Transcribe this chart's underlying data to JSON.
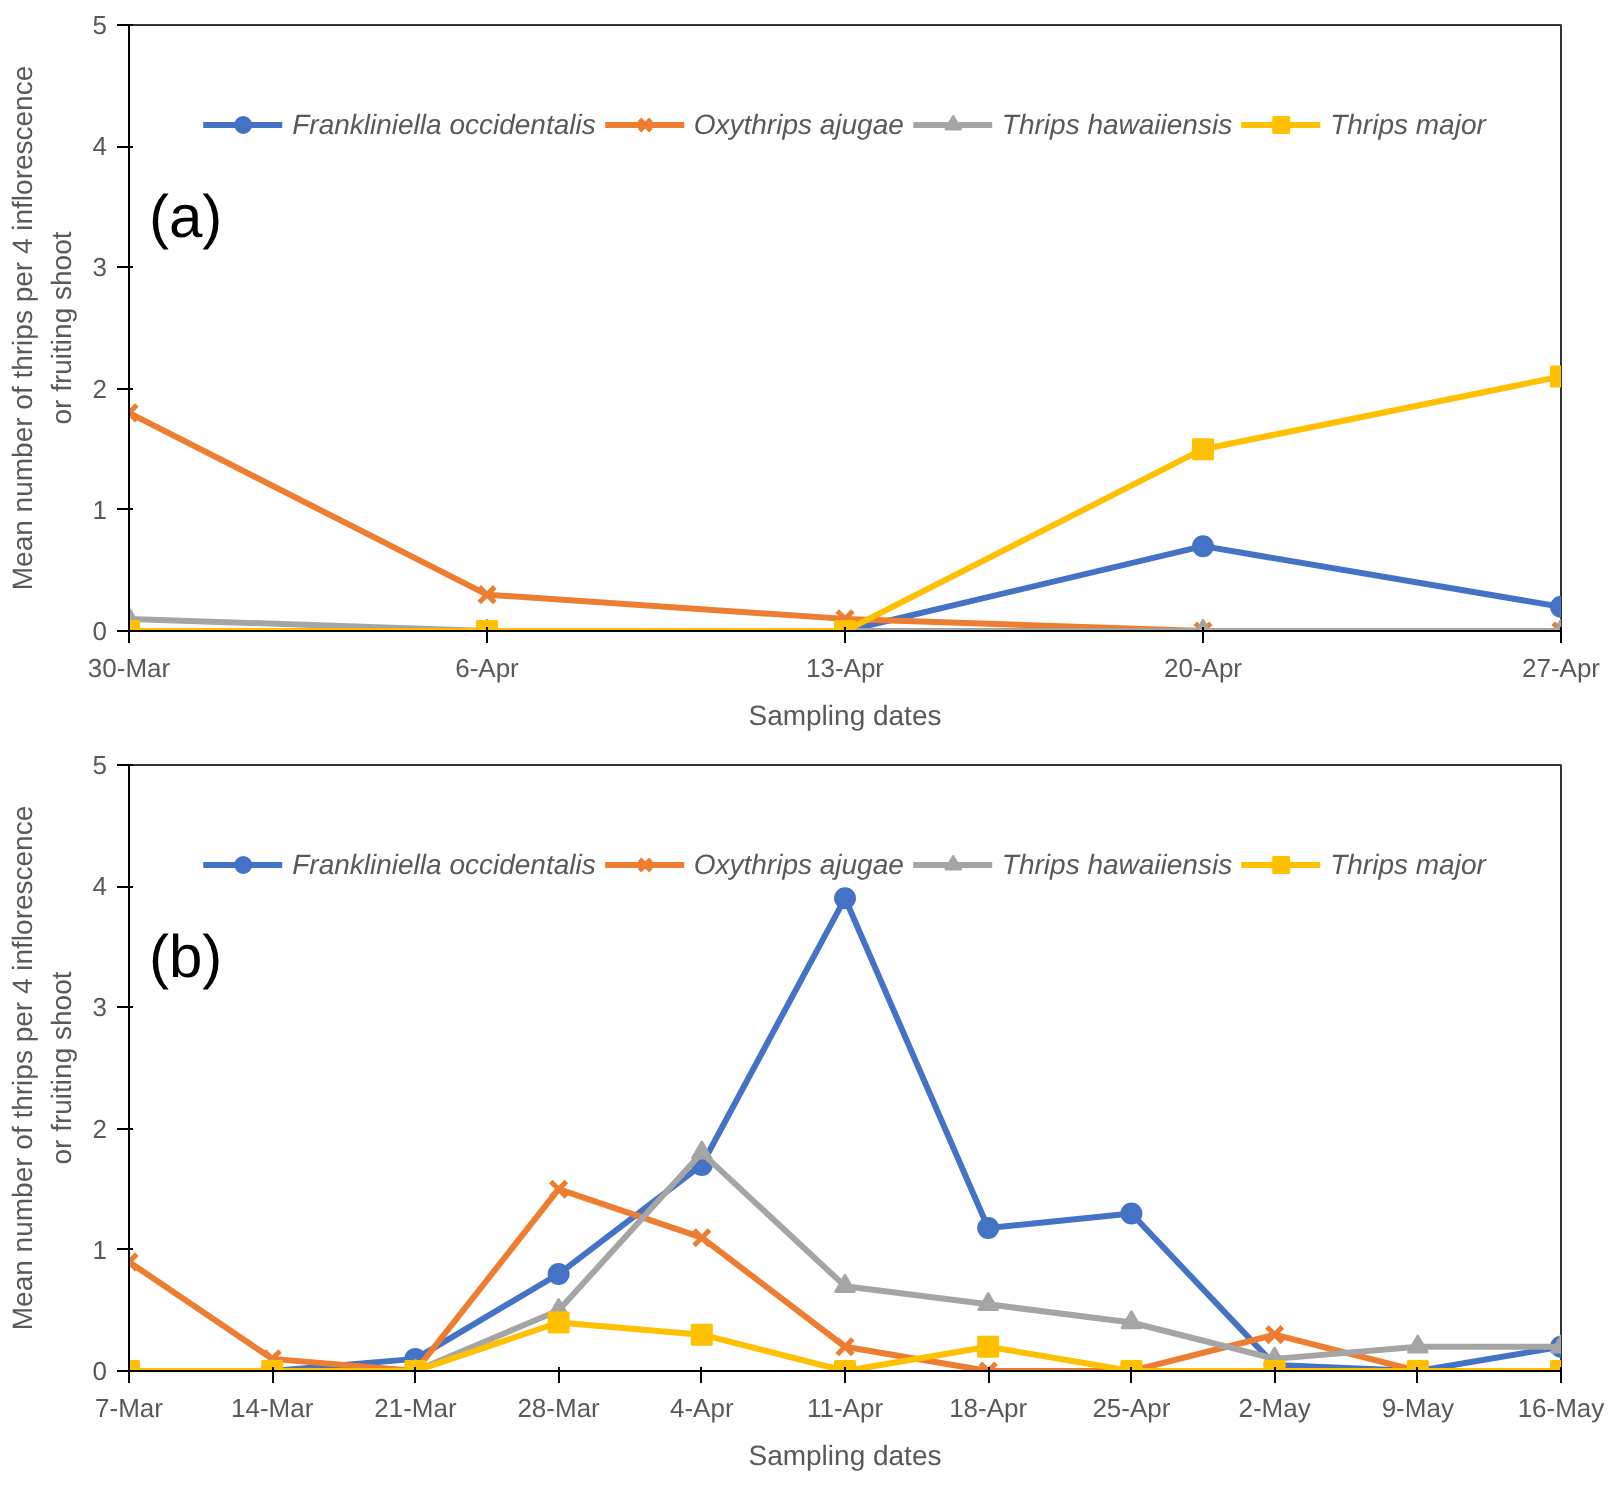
{
  "chart_data": [
    {
      "type": "line",
      "xlabel": "Sampling dates",
      "ylabel": "Mean number of thrips per 4 inflorescence\nor fruiting shoot",
      "annotations": [
        "(a)"
      ],
      "categories": [
        "30-Mar",
        "6-Apr",
        "13-Apr",
        "20-Apr",
        "27-Apr"
      ],
      "ylim": [
        0,
        5
      ],
      "yticks": [
        0,
        1,
        2,
        3,
        4,
        5
      ],
      "grid": false,
      "legend": "top",
      "series": [
        {
          "name": "Frankliniella occidentalis",
          "color": "#4472c4",
          "marker": "circle",
          "values": [
            0,
            0,
            0,
            0.7,
            0.2
          ]
        },
        {
          "name": "Oxythrips ajugae",
          "color": "#ed7d31",
          "marker": "cross",
          "values": [
            1.8,
            0.3,
            0.1,
            0,
            0
          ]
        },
        {
          "name": "Thrips hawaiiensis",
          "color": "#a5a5a5",
          "marker": "triangle",
          "values": [
            0.1,
            0,
            0,
            0,
            0
          ]
        },
        {
          "name": "Thrips major",
          "color": "#ffc000",
          "marker": "square",
          "values": [
            0,
            0,
            0,
            1.5,
            2.1
          ]
        }
      ]
    },
    {
      "type": "line",
      "xlabel": "Sampling dates",
      "ylabel": "Mean number of thrips per 4 inflorescence\nor fruiting shoot",
      "annotations": [
        "(b)"
      ],
      "categories": [
        "7-Mar",
        "14-Mar",
        "21-Mar",
        "28-Mar",
        "4-Apr",
        "11-Apr",
        "18-Apr",
        "25-Apr",
        "2-May",
        "9-May",
        "16-May"
      ],
      "ylim": [
        0,
        5
      ],
      "yticks": [
        0,
        1,
        2,
        3,
        4,
        5
      ],
      "grid": false,
      "legend": "top",
      "series": [
        {
          "name": "Frankliniella occidentalis",
          "color": "#4472c4",
          "marker": "circle",
          "values": [
            0,
            0,
            0.1,
            0.8,
            1.7,
            3.9,
            1.18,
            1.3,
            0.05,
            0,
            0.2
          ]
        },
        {
          "name": "Oxythrips ajugae",
          "color": "#ed7d31",
          "marker": "cross",
          "values": [
            0.9,
            0.1,
            0,
            1.5,
            1.1,
            0.2,
            0,
            0,
            0.3,
            0,
            0
          ]
        },
        {
          "name": "Thrips hawaiiensis",
          "color": "#a5a5a5",
          "marker": "triangle",
          "values": [
            0,
            0,
            0,
            0.5,
            1.8,
            0.7,
            0.55,
            0.4,
            0.1,
            0.2,
            0.2
          ]
        },
        {
          "name": "Thrips major",
          "color": "#ffc000",
          "marker": "square",
          "values": [
            0,
            0,
            0,
            0.4,
            0.3,
            0,
            0.2,
            0,
            0,
            0,
            0
          ]
        }
      ]
    }
  ]
}
